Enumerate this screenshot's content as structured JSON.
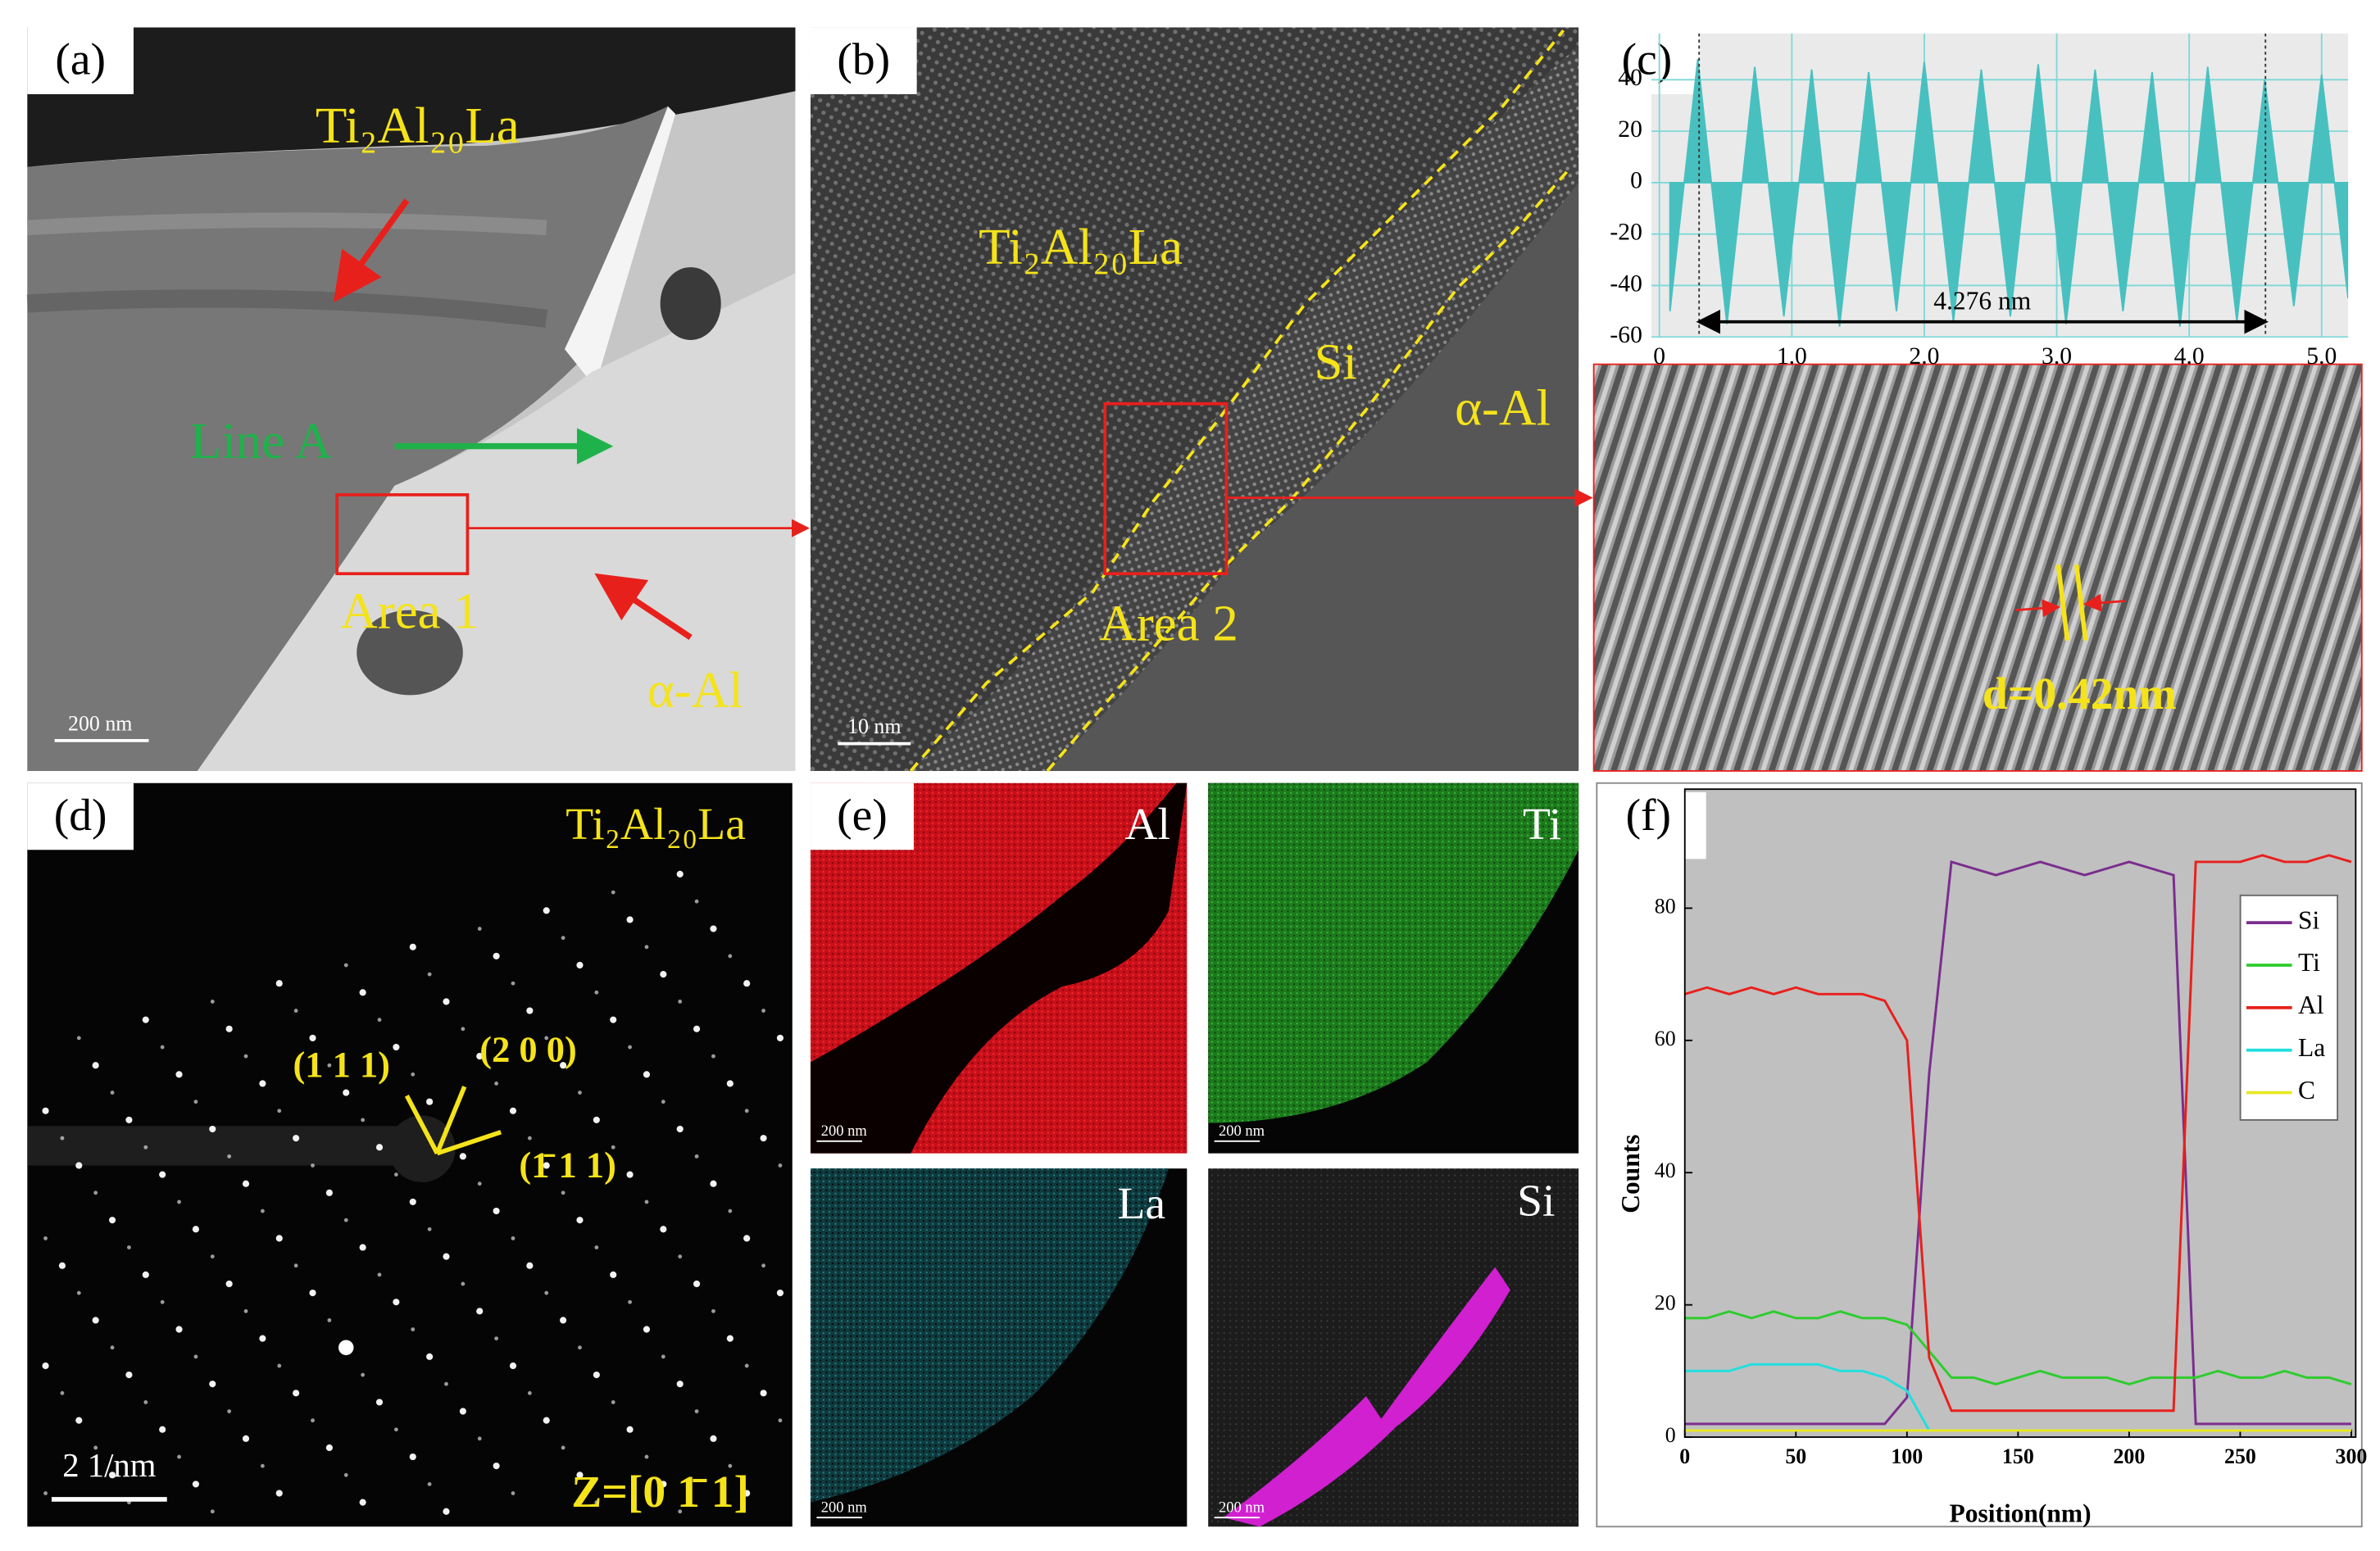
{
  "panels": {
    "a": {
      "label": "(a)",
      "phase": "Ti₂Al₂₀La",
      "line": "Line A",
      "area": "Area 1",
      "matrix": "α-Al",
      "scale": "200 nm"
    },
    "b": {
      "label": "(b)",
      "phase": "Ti₂Al₂₀La",
      "si": "Si",
      "matrix": "α-Al",
      "area": "Area 2",
      "scale": "10 nm"
    },
    "c": {
      "label": "(c)",
      "spacing": "d=0.42nm"
    },
    "d": {
      "label": "(d)",
      "phase": "Ti₂Al₂₀La",
      "spots": [
        "(1 1 1)",
        "(2 0 0)",
        "(1̄ 1 1)"
      ],
      "zone": "Z=[0 1̄ 1]",
      "scale": "2 1/nm"
    },
    "e": {
      "label": "(e)",
      "maps": [
        {
          "element": "Al",
          "scale": "200 nm"
        },
        {
          "element": "Ti",
          "scale": "200 nm"
        },
        {
          "element": "La",
          "scale": "200 nm"
        },
        {
          "element": "Si",
          "scale": "200 nm"
        }
      ]
    },
    "f": {
      "label": "(f)"
    }
  },
  "chart_data": [
    {
      "type": "area",
      "color": "#49c0c0",
      "x": [
        0.08,
        0.29,
        0.51,
        0.72,
        0.94,
        1.15,
        1.36,
        1.58,
        1.79,
        2.0,
        2.22,
        2.43,
        2.65,
        2.86,
        3.07,
        3.29,
        3.5,
        3.72,
        3.93,
        4.14,
        4.36,
        4.57,
        4.79,
        5.0,
        5.2
      ],
      "values": [
        -50,
        48,
        -55,
        45,
        -52,
        44,
        -56,
        43,
        -50,
        47,
        -54,
        44,
        -52,
        46,
        -55,
        44,
        -50,
        43,
        -56,
        45,
        -54,
        40,
        -48,
        42,
        -45
      ],
      "xlim": [
        -0.06,
        5.2
      ],
      "ylim": [
        -60,
        58
      ],
      "xticks": [
        0,
        {
          "value": 1,
          "label": "1.0"
        },
        {
          "value": 2,
          "label": "2.0"
        },
        {
          "value": 3,
          "label": "3.0"
        },
        {
          "value": 4,
          "label": "4.0"
        },
        {
          "value": 5,
          "label": "5.0"
        }
      ],
      "yticks": [
        -60,
        -40,
        -20,
        0,
        20,
        40
      ],
      "grid": true,
      "measure": {
        "label": "4.276 nm",
        "x": [
          0.3,
          4.576
        ]
      }
    },
    {
      "type": "line",
      "x_label": "Position(nm)",
      "y_label": "Counts",
      "x": [
        0,
        10,
        20,
        30,
        40,
        50,
        60,
        70,
        80,
        90,
        100,
        110,
        120,
        130,
        140,
        150,
        160,
        170,
        180,
        190,
        200,
        210,
        220,
        230,
        240,
        250,
        260,
        270,
        280,
        290,
        300
      ],
      "series": [
        {
          "name": "Si",
          "color": "#7b2d8e",
          "values": [
            2,
            2,
            2,
            2,
            2,
            2,
            2,
            2,
            2,
            2,
            6,
            55,
            87,
            86,
            85,
            86,
            87,
            86,
            85,
            86,
            87,
            86,
            85,
            2,
            2,
            2,
            2,
            2,
            2,
            2,
            2
          ]
        },
        {
          "name": "Ti",
          "color": "#2ecc2e",
          "values": [
            18,
            18,
            19,
            18,
            19,
            18,
            18,
            19,
            18,
            18,
            17,
            13,
            9,
            9,
            8,
            9,
            10,
            9,
            9,
            9,
            8,
            9,
            9,
            9,
            10,
            9,
            9,
            10,
            9,
            9,
            8
          ]
        },
        {
          "name": "Al",
          "color": "#e8201c",
          "values": [
            67,
            68,
            67,
            68,
            67,
            68,
            67,
            67,
            67,
            66,
            60,
            12,
            4,
            4,
            4,
            4,
            4,
            4,
            4,
            4,
            4,
            4,
            4,
            87,
            87,
            87,
            88,
            87,
            87,
            88,
            87
          ]
        },
        {
          "name": "La",
          "color": "#22dede",
          "values": [
            10,
            10,
            10,
            11,
            11,
            11,
            11,
            10,
            10,
            9,
            7,
            1,
            null,
            null,
            null,
            null,
            null,
            null,
            null,
            null,
            null,
            null,
            null,
            null,
            null,
            null,
            null,
            null,
            null,
            null,
            null
          ]
        },
        {
          "name": "C",
          "color": "#e8e820",
          "values": [
            1,
            1,
            1,
            1,
            1,
            1,
            1,
            1,
            1,
            1,
            1,
            1,
            1,
            1,
            1,
            1,
            1,
            1,
            1,
            1,
            1,
            1,
            1,
            1,
            1,
            1,
            1,
            1,
            1,
            1,
            1
          ]
        }
      ],
      "xlim": [
        0,
        302
      ],
      "ylim": [
        0,
        98
      ],
      "xticks": [
        0,
        50,
        100,
        150,
        200,
        250,
        300
      ],
      "yticks": [
        0,
        20,
        40,
        60,
        80
      ],
      "grid": false,
      "legend": "upper right"
    }
  ]
}
